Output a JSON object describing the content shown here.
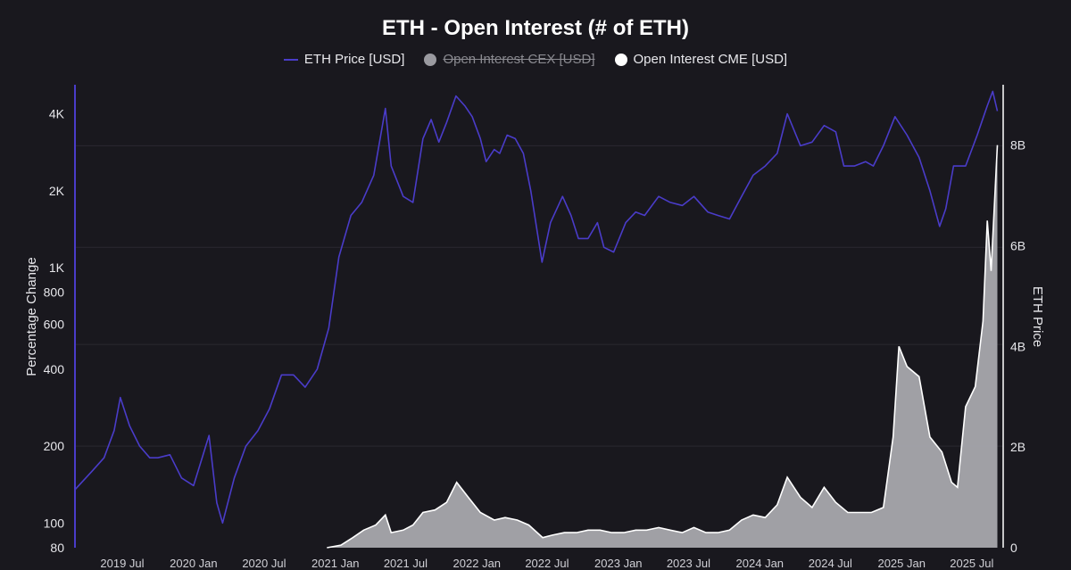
{
  "chart_data": {
    "type": "line",
    "title": "ETH - Open Interest (# of ETH)",
    "legend": [
      {
        "name": "ETH Price [USD]",
        "color": "#4a3cc9",
        "marker": "line",
        "visible": true
      },
      {
        "name": "Open Interest CEX [USD]",
        "color": "#9a9aa0",
        "marker": "dot",
        "visible": false
      },
      {
        "name": "Open Interest CME [USD]",
        "color": "#ffffff",
        "marker": "dot",
        "visible": true
      }
    ],
    "legend_placement": "top-center",
    "ylabel_left": "Percentage Change",
    "ylabel_right": "ETH Price",
    "y_left_scale": "log",
    "y_left_ticks": [
      "80",
      "100",
      "200",
      "400",
      "600",
      "800",
      "1K",
      "2K",
      "4K"
    ],
    "y_right_ticks": [
      "0",
      "2B",
      "4B",
      "6B",
      "8B"
    ],
    "x_ticks": [
      "2019 Jul",
      "2020 Jan",
      "2020 Jul",
      "2021 Jan",
      "2021 Jul",
      "2022 Jan",
      "2022 Jul",
      "2023 Jan",
      "2023 Jul",
      "2024 Jan",
      "2024 Jul",
      "2025 Jan",
      "2025 Jul"
    ],
    "ylim_left": [
      80,
      5200
    ],
    "ylim_right": [
      0,
      9200000000
    ],
    "grid": "horizontal",
    "series": [
      {
        "name": "ETH Price [USD]",
        "axis": "left",
        "color": "#4a3cc9",
        "x": [
          "2019-03-01",
          "2019-04-15",
          "2019-05-15",
          "2019-06-10",
          "2019-06-26",
          "2019-07-20",
          "2019-08-15",
          "2019-09-10",
          "2019-10-01",
          "2019-11-01",
          "2019-12-01",
          "2020-01-01",
          "2020-02-10",
          "2020-03-01",
          "2020-03-16",
          "2020-04-15",
          "2020-05-15",
          "2020-06-15",
          "2020-07-15",
          "2020-08-15",
          "2020-09-15",
          "2020-10-15",
          "2020-11-15",
          "2020-12-15",
          "2021-01-10",
          "2021-02-10",
          "2021-03-10",
          "2021-04-10",
          "2021-05-10",
          "2021-05-25",
          "2021-06-25",
          "2021-07-20",
          "2021-08-15",
          "2021-09-05",
          "2021-09-25",
          "2021-10-15",
          "2021-11-08",
          "2021-12-01",
          "2021-12-20",
          "2022-01-10",
          "2022-01-25",
          "2022-02-15",
          "2022-03-01",
          "2022-03-20",
          "2022-04-10",
          "2022-05-01",
          "2022-05-20",
          "2022-06-18",
          "2022-07-10",
          "2022-08-10",
          "2022-09-01",
          "2022-09-20",
          "2022-10-15",
          "2022-11-08",
          "2022-11-25",
          "2022-12-20",
          "2023-01-20",
          "2023-02-15",
          "2023-03-10",
          "2023-04-15",
          "2023-05-15",
          "2023-06-15",
          "2023-07-15",
          "2023-08-20",
          "2023-09-15",
          "2023-10-15",
          "2023-11-15",
          "2023-12-15",
          "2024-01-15",
          "2024-02-15",
          "2024-03-12",
          "2024-04-15",
          "2024-05-15",
          "2024-06-15",
          "2024-07-15",
          "2024-08-05",
          "2024-09-01",
          "2024-09-30",
          "2024-10-20",
          "2024-11-15",
          "2024-12-15",
          "2025-01-15",
          "2025-02-15",
          "2025-03-15",
          "2025-04-09",
          "2025-04-25",
          "2025-05-15",
          "2025-06-15",
          "2025-07-15",
          "2025-08-10",
          "2025-08-24",
          "2025-09-05"
        ],
        "values": [
          135,
          160,
          180,
          230,
          310,
          240,
          200,
          180,
          180,
          185,
          150,
          140,
          220,
          120,
          100,
          150,
          200,
          230,
          280,
          380,
          380,
          340,
          400,
          580,
          1100,
          1600,
          1800,
          2300,
          4200,
          2500,
          1900,
          1800,
          3200,
          3800,
          3100,
          3700,
          4700,
          4300,
          3900,
          3200,
          2600,
          2900,
          2800,
          3300,
          3200,
          2800,
          2000,
          1050,
          1500,
          1900,
          1600,
          1300,
          1300,
          1500,
          1200,
          1150,
          1500,
          1650,
          1600,
          1900,
          1800,
          1750,
          1900,
          1650,
          1600,
          1550,
          1900,
          2300,
          2500,
          2800,
          4000,
          3000,
          3100,
          3600,
          3400,
          2500,
          2500,
          2600,
          2500,
          3000,
          3900,
          3300,
          2700,
          2000,
          1450,
          1700,
          2500,
          2500,
          3300,
          4300,
          4900,
          4100
        ]
      },
      {
        "name": "Open Interest CME [USD]",
        "axis": "right",
        "color": "#ffffff",
        "fill": "#a8a8ad",
        "x": [
          "2020-12-10",
          "2021-01-15",
          "2021-02-15",
          "2021-03-15",
          "2021-04-15",
          "2021-05-10",
          "2021-05-25",
          "2021-06-25",
          "2021-07-20",
          "2021-08-15",
          "2021-09-15",
          "2021-10-15",
          "2021-11-10",
          "2021-12-10",
          "2022-01-10",
          "2022-02-15",
          "2022-03-15",
          "2022-04-15",
          "2022-05-15",
          "2022-06-20",
          "2022-07-15",
          "2022-08-15",
          "2022-09-15",
          "2022-10-15",
          "2022-11-15",
          "2022-12-15",
          "2023-01-15",
          "2023-02-15",
          "2023-03-15",
          "2023-04-15",
          "2023-05-15",
          "2023-06-15",
          "2023-07-15",
          "2023-08-15",
          "2023-09-15",
          "2023-10-15",
          "2023-11-15",
          "2023-12-15",
          "2024-01-15",
          "2024-02-15",
          "2024-03-12",
          "2024-04-15",
          "2024-05-15",
          "2024-06-15",
          "2024-07-15",
          "2024-08-15",
          "2024-09-15",
          "2024-10-15",
          "2024-11-15",
          "2024-12-10",
          "2024-12-25",
          "2025-01-15",
          "2025-02-15",
          "2025-03-15",
          "2025-04-15",
          "2025-05-10",
          "2025-05-25",
          "2025-06-15",
          "2025-07-10",
          "2025-07-30",
          "2025-08-10",
          "2025-08-20",
          "2025-09-05"
        ],
        "values": [
          0,
          50000000,
          200000000,
          350000000,
          450000000,
          650000000,
          300000000,
          350000000,
          450000000,
          700000000,
          750000000,
          900000000,
          1300000000,
          1000000000,
          700000000,
          550000000,
          600000000,
          550000000,
          450000000,
          200000000,
          250000000,
          300000000,
          300000000,
          350000000,
          350000000,
          300000000,
          300000000,
          350000000,
          350000000,
          400000000,
          350000000,
          300000000,
          400000000,
          300000000,
          300000000,
          350000000,
          550000000,
          650000000,
          600000000,
          850000000,
          1400000000,
          1000000000,
          800000000,
          1200000000,
          900000000,
          700000000,
          700000000,
          700000000,
          800000000,
          2200000000,
          4000000000,
          3600000000,
          3400000000,
          2200000000,
          1900000000,
          1300000000,
          1200000000,
          2800000000,
          3200000000,
          4500000000,
          6500000000,
          5500000000,
          8000000000
        ]
      }
    ]
  }
}
